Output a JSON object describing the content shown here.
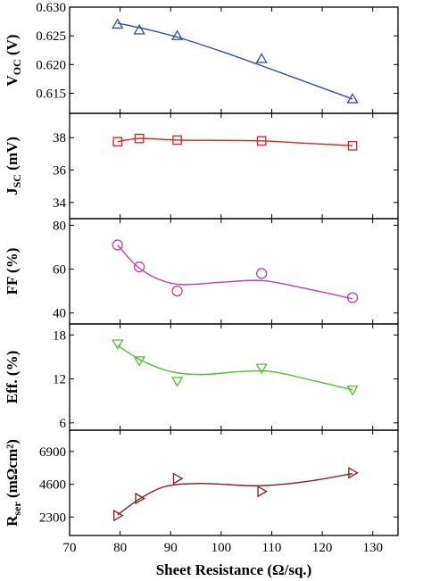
{
  "chart_data": {
    "type": "scatter",
    "layout": "stacked-panels-shared-x",
    "xlabel": "Sheet Resistance (Ω/sq.)",
    "xlim": [
      70,
      135
    ],
    "xticks": [
      70,
      80,
      90,
      100,
      110,
      120,
      130
    ],
    "x": [
      79.5,
      83.8,
      91.3,
      108.0,
      126.0
    ],
    "panels": [
      {
        "ylabel_main": "V",
        "ylabel_sub": "OC",
        "ylabel_unit": " (V)",
        "ylim": [
          0.6115,
          0.63
        ],
        "yticks": [
          0.615,
          0.62,
          0.625,
          0.63
        ],
        "ytick_labels": [
          "0.615",
          "0.620",
          "0.625",
          "0.630"
        ],
        "marker": "triangle-up",
        "color": "#2e4ea3",
        "values": [
          0.627,
          0.626,
          0.625,
          0.621,
          0.614
        ],
        "fit_curve": [
          [
            79.5,
            0.6272
          ],
          [
            85,
            0.6262
          ],
          [
            92,
            0.6246
          ],
          [
            100,
            0.6223
          ],
          [
            108,
            0.6198
          ],
          [
            117,
            0.6169
          ],
          [
            126,
            0.614
          ]
        ]
      },
      {
        "ylabel_main": "J",
        "ylabel_sub": "SC",
        "ylabel_unit": " (mV)",
        "ylim": [
          33,
          39.5
        ],
        "yticks": [
          34,
          36,
          38
        ],
        "ytick_labels": [
          "34",
          "36",
          "38"
        ],
        "marker": "square",
        "color": "#e02020",
        "values": [
          37.75,
          37.95,
          37.85,
          37.8,
          37.5
        ],
        "fit_curve": [
          [
            79.5,
            37.75
          ],
          [
            83.8,
            37.95
          ],
          [
            91.3,
            37.85
          ],
          [
            100,
            37.83
          ],
          [
            108,
            37.8
          ],
          [
            117,
            37.65
          ],
          [
            126,
            37.5
          ]
        ]
      },
      {
        "ylabel_main": "FF",
        "ylabel_sub": "",
        "ylabel_unit": " (%)",
        "ylim": [
          35,
          83
        ],
        "yticks": [
          40,
          60,
          80
        ],
        "ytick_labels": [
          "40",
          "60",
          "80"
        ],
        "marker": "circle",
        "color": "#c040b0",
        "values": [
          71,
          61,
          50,
          58,
          47
        ],
        "fit_curve": [
          [
            79.5,
            71
          ],
          [
            83,
            62
          ],
          [
            87,
            56
          ],
          [
            92,
            53
          ],
          [
            100,
            54
          ],
          [
            108,
            54.8
          ],
          [
            116,
            51.5
          ],
          [
            126,
            46.5
          ]
        ]
      },
      {
        "ylabel_main": "Eff.",
        "ylabel_sub": "",
        "ylabel_unit": " (%)",
        "ylim": [
          5,
          19.5
        ],
        "yticks": [
          6,
          12,
          18
        ],
        "ytick_labels": [
          "6",
          "12",
          "18"
        ],
        "marker": "triangle-down",
        "color": "#50c030",
        "values": [
          16.8,
          14.5,
          11.7,
          13.5,
          10.5
        ],
        "fit_curve": [
          [
            79.5,
            16.6
          ],
          [
            84,
            14.6
          ],
          [
            90,
            13.0
          ],
          [
            96,
            12.6
          ],
          [
            104,
            13.0
          ],
          [
            110,
            13.0
          ],
          [
            118,
            11.8
          ],
          [
            126,
            10.5
          ]
        ]
      },
      {
        "ylabel_main": "R",
        "ylabel_sub": "ser",
        "ylabel_unit": " (mΩcm²)",
        "ylim": [
          1000,
          8400
        ],
        "yticks": [
          2300,
          4600,
          6900
        ],
        "ytick_labels": [
          "2300",
          "4600",
          "6900"
        ],
        "marker": "triangle-right",
        "color": "#8b1a1a",
        "values": [
          2400,
          3600,
          5000,
          4100,
          5400
        ],
        "fit_curve": [
          [
            79.5,
            2450
          ],
          [
            84,
            3600
          ],
          [
            89,
            4450
          ],
          [
            95,
            4650
          ],
          [
            100,
            4600
          ],
          [
            108,
            4500
          ],
          [
            117,
            4800
          ],
          [
            126,
            5350
          ]
        ]
      }
    ]
  }
}
